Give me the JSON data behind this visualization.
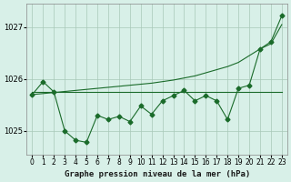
{
  "title": "Graphe pression niveau de la mer (hPa)",
  "bg_color": "#d8f0e8",
  "grid_color": "#a8c8b8",
  "line_color": "#1a6b2a",
  "x_labels": [
    "0",
    "1",
    "2",
    "3",
    "4",
    "5",
    "6",
    "7",
    "8",
    "9",
    "10",
    "11",
    "12",
    "13",
    "14",
    "15",
    "16",
    "17",
    "18",
    "19",
    "20",
    "21",
    "22",
    "23"
  ],
  "ylim": [
    1024.55,
    1027.45
  ],
  "yticks": [
    1025,
    1026,
    1027
  ],
  "line1": [
    1025.7,
    1025.95,
    1025.75,
    1025.0,
    1024.82,
    1024.78,
    1025.3,
    1025.22,
    1025.28,
    1025.18,
    1025.48,
    1025.32,
    1025.58,
    1025.68,
    1025.78,
    1025.58,
    1025.68,
    1025.58,
    1025.22,
    1025.82,
    1025.88,
    1026.58,
    1026.72,
    1027.22
  ],
  "line2": [
    1025.75,
    1025.75,
    1025.75,
    1025.75,
    1025.75,
    1025.75,
    1025.75,
    1025.75,
    1025.75,
    1025.75,
    1025.75,
    1025.75,
    1025.75,
    1025.75,
    1025.75,
    1025.75,
    1025.75,
    1025.75,
    1025.75,
    1025.75,
    1025.75,
    1025.75,
    1025.75,
    1025.75
  ],
  "line3": [
    1025.7,
    1025.72,
    1025.74,
    1025.76,
    1025.78,
    1025.8,
    1025.82,
    1025.84,
    1025.86,
    1025.88,
    1025.9,
    1025.92,
    1025.95,
    1025.98,
    1026.02,
    1026.06,
    1026.12,
    1026.18,
    1026.24,
    1026.32,
    1026.45,
    1026.58,
    1026.68,
    1027.05
  ]
}
